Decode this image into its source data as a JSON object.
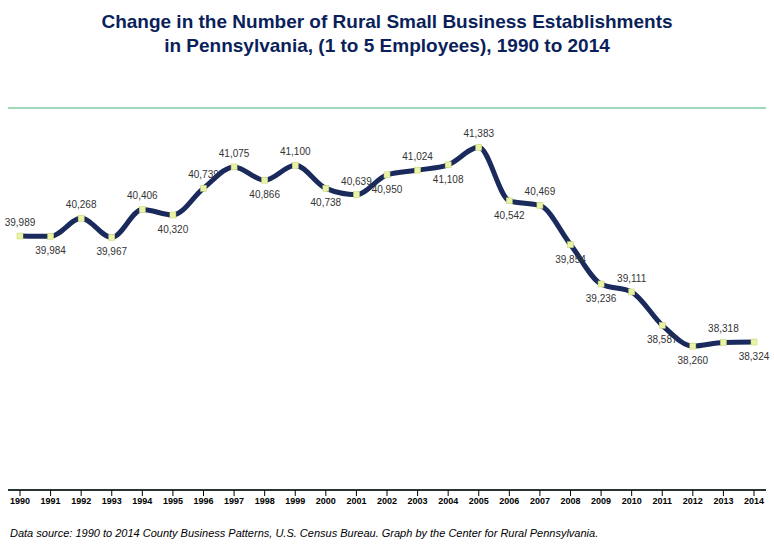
{
  "chart_data": {
    "type": "line",
    "title": "Change in the Number of Rural Small Business Establishments in Pennsylvania, (1 to 5 Employees), 1990 to 2014",
    "source": "Data source: 1990 to 2014 County Business Patterns, U.S. Census Bureau. Graph by the Center for Rural Pennsylvania.",
    "categories": [
      "1990",
      "1991",
      "1992",
      "1993",
      "1994",
      "1995",
      "1996",
      "1997",
      "1998",
      "1999",
      "2000",
      "2001",
      "2002",
      "2003",
      "2004",
      "2005",
      "2006",
      "2007",
      "2008",
      "2009",
      "2010",
      "2011",
      "2012",
      "2013",
      "2014"
    ],
    "values": [
      39989,
      39984,
      40268,
      39967,
      40406,
      40320,
      40739,
      41075,
      40866,
      41100,
      40738,
      40639,
      40950,
      41024,
      41108,
      41383,
      40542,
      40469,
      39854,
      39236,
      39111,
      38587,
      38260,
      38318,
      38324
    ],
    "value_labels": [
      "39,989",
      "39,984",
      "40,268",
      "39,967",
      "40,406",
      "40,320",
      "40,739",
      "41,075",
      "40,866",
      "41,100",
      "40,738",
      "40,639",
      "40,950",
      "41,024",
      "41,108",
      "41,383",
      "40,542",
      "40,469",
      "39,854",
      "39,236",
      "39,111",
      "38,587",
      "38,260",
      "38,318",
      "38,324"
    ],
    "color": "#1b2a5c",
    "marker": "square",
    "ylim": [
      36000,
      42000
    ],
    "yticks": [
      36000,
      36750,
      37500,
      38250,
      39000,
      39750,
      40500,
      41250,
      42000
    ],
    "grid": true,
    "data_labels": true,
    "tick_labels": "x"
  }
}
